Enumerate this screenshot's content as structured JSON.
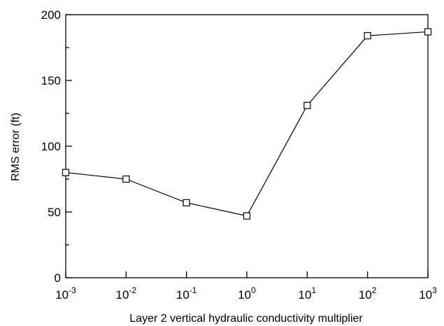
{
  "chart_data": {
    "type": "line",
    "xlabel": "Layer 2 vertical hydraulic conductivity multiplier",
    "ylabel": "RMS error (ft)",
    "x_scale": "log",
    "xlim": [
      0.001,
      1000
    ],
    "ylim": [
      0,
      200
    ],
    "grid": false,
    "x_ticks": [
      {
        "base": "10",
        "exp": "-3",
        "value": 0.001
      },
      {
        "base": "10",
        "exp": "-2",
        "value": 0.01
      },
      {
        "base": "10",
        "exp": "-1",
        "value": 0.1
      },
      {
        "base": "10",
        "exp": "0",
        "value": 1
      },
      {
        "base": "10",
        "exp": "1",
        "value": 10
      },
      {
        "base": "10",
        "exp": "2",
        "value": 100
      },
      {
        "base": "10",
        "exp": "3",
        "value": 1000
      }
    ],
    "y_ticks": [
      {
        "label": "0",
        "value": 0
      },
      {
        "label": "50",
        "value": 50
      },
      {
        "label": "100",
        "value": 100
      },
      {
        "label": "150",
        "value": 150
      },
      {
        "label": "200",
        "value": 200
      }
    ],
    "y_minor_ticks": [
      25,
      75,
      125,
      175
    ],
    "series": [
      {
        "x": [
          0.001,
          0.01,
          0.1,
          1,
          10,
          100,
          1000
        ],
        "y": [
          80,
          75,
          57,
          47,
          131,
          184,
          187
        ],
        "marker": "open-square",
        "color": "#000000"
      }
    ]
  }
}
